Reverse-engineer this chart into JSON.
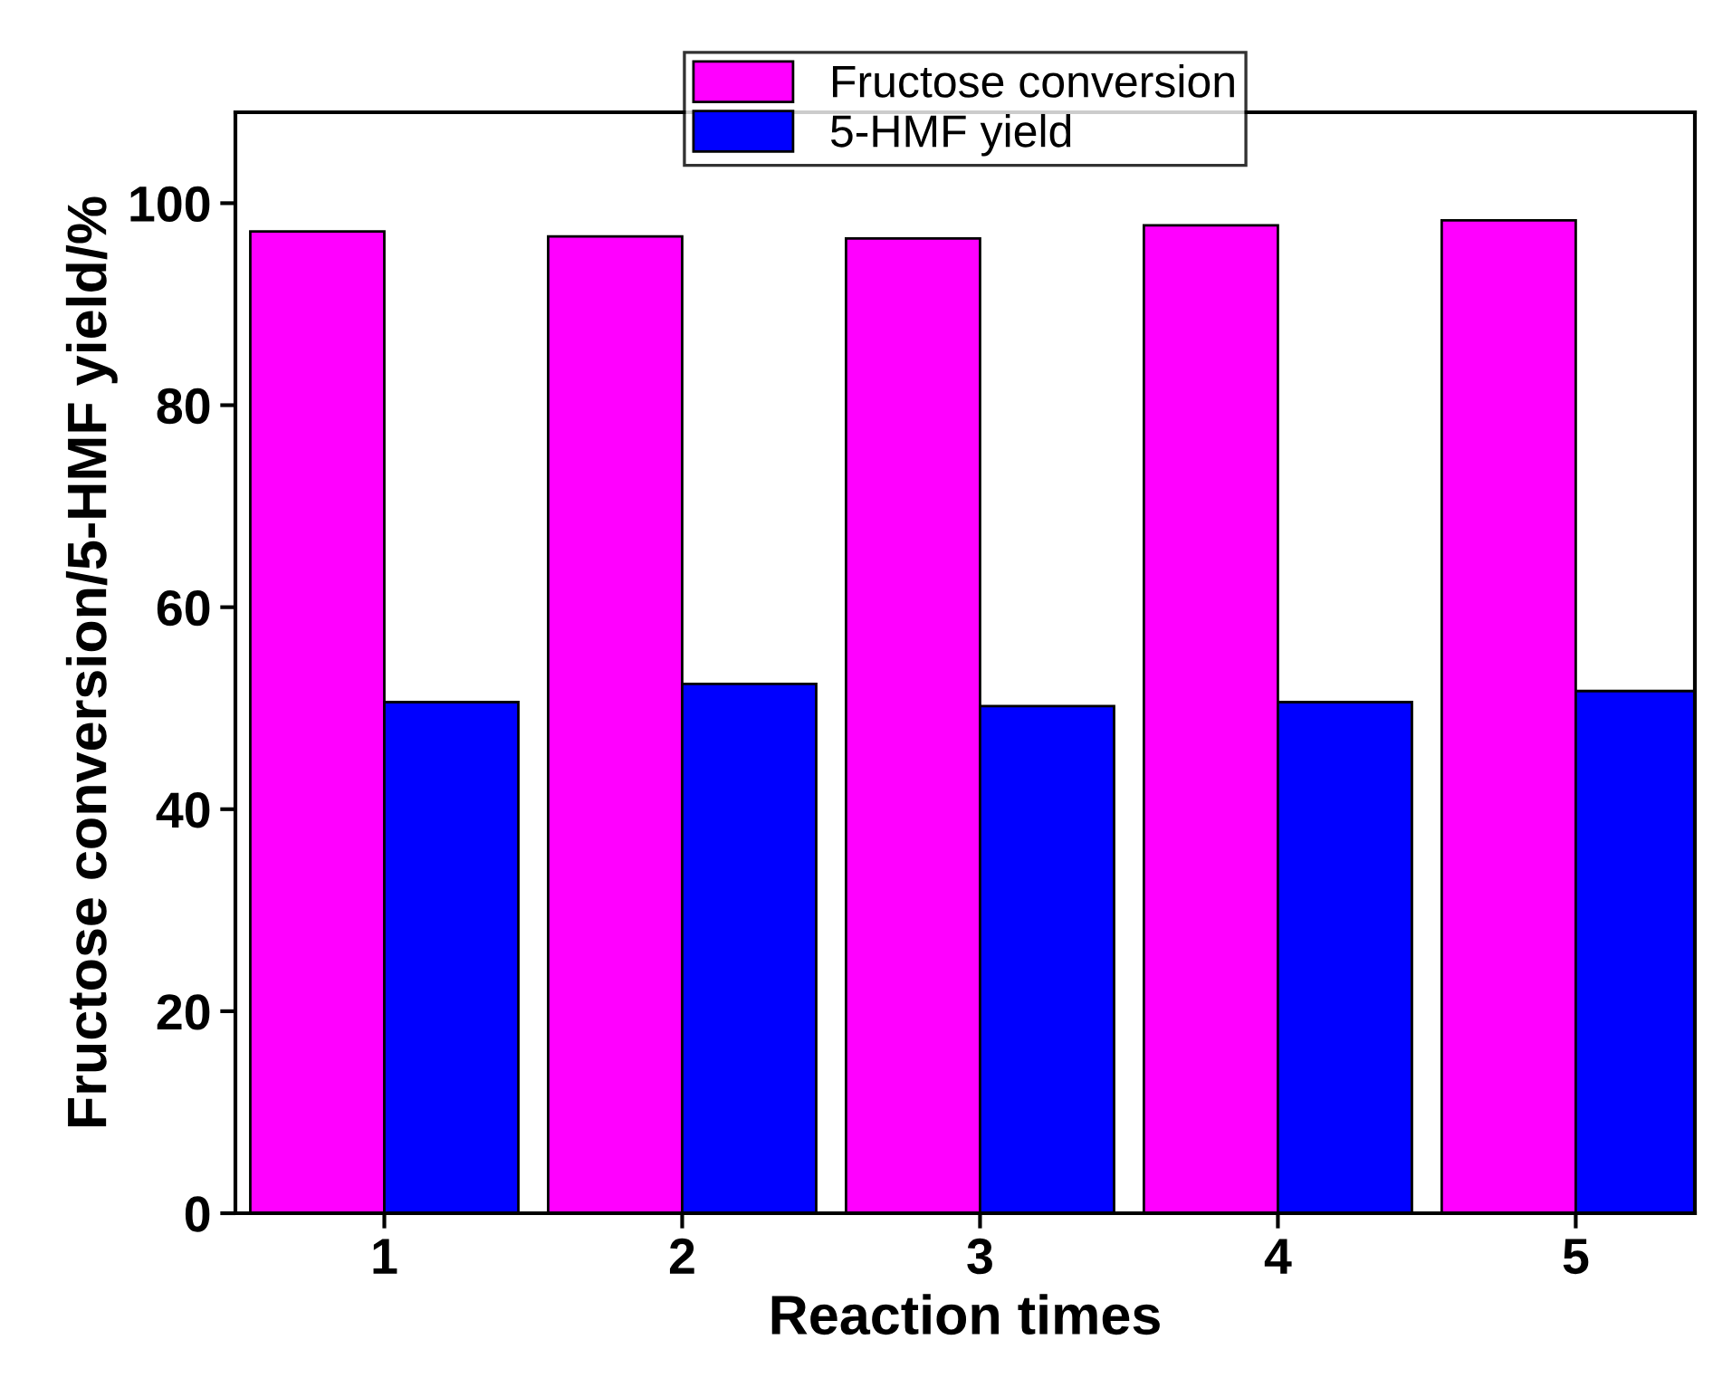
{
  "chart_data": {
    "type": "bar",
    "xlabel": "Reaction times",
    "ylabel": "Fructose conversion/5-HMF yield/%",
    "categories": [
      "1",
      "2",
      "3",
      "4",
      "5"
    ],
    "series": [
      {
        "name": "Fructose conversion",
        "color": "#ff00ff",
        "values": [
          97.2,
          96.7,
          96.5,
          97.8,
          98.3
        ]
      },
      {
        "name": "5-HMF yield",
        "color": "#0000ff",
        "values": [
          50.6,
          52.4,
          50.2,
          50.6,
          51.7
        ]
      }
    ],
    "ylim": [
      0,
      109
    ],
    "yticks": [
      0,
      20,
      40,
      60,
      80,
      100
    ],
    "grid": false,
    "legend": "top"
  }
}
